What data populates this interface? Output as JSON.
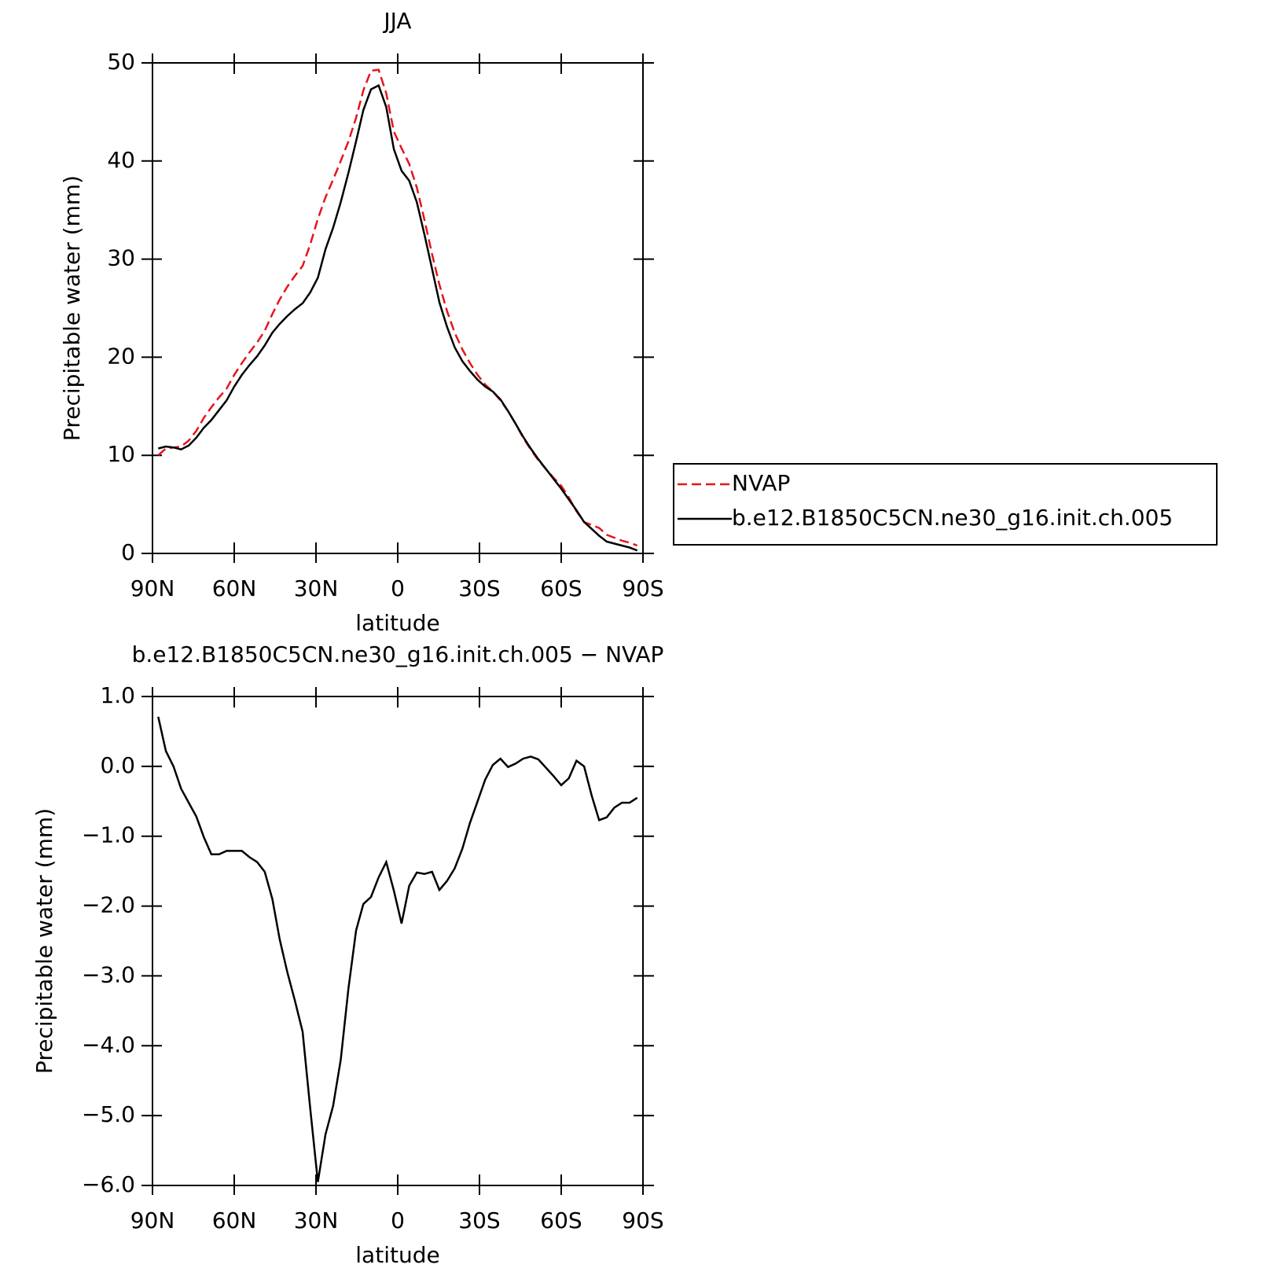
{
  "chart_data": [
    {
      "type": "line",
      "title": "JJA",
      "x_label": "latitude",
      "y_label": "Precipitable water (mm)",
      "x": [
        87.9,
        85.1,
        82.3,
        79.5,
        76.7,
        73.9,
        71.2,
        68.4,
        65.6,
        62.8,
        60.0,
        57.2,
        54.4,
        51.6,
        48.8,
        46.0,
        43.3,
        40.5,
        37.7,
        34.9,
        32.1,
        29.3,
        26.5,
        23.7,
        20.9,
        18.1,
        15.3,
        12.6,
        9.8,
        7.0,
        4.2,
        1.4,
        -1.4,
        -4.2,
        -7.0,
        -9.8,
        -12.6,
        -15.3,
        -18.1,
        -20.9,
        -23.7,
        -26.5,
        -29.3,
        -32.1,
        -34.9,
        -37.7,
        -40.5,
        -43.3,
        -46.0,
        -48.8,
        -51.6,
        -54.4,
        -57.2,
        -60.0,
        -62.8,
        -65.6,
        -68.4,
        -71.2,
        -73.9,
        -76.7,
        -79.5,
        -82.3,
        -85.1,
        -87.9
      ],
      "series": [
        {
          "name": "NVAP",
          "color": "#e8141c",
          "dashed": true,
          "values": [
            10.0,
            10.7,
            10.8,
            10.9,
            11.5,
            12.5,
            13.8,
            14.9,
            15.9,
            16.8,
            18.2,
            19.4,
            20.5,
            21.5,
            22.7,
            24.4,
            25.9,
            27.2,
            28.3,
            29.3,
            31.5,
            34.1,
            36.3,
            38.1,
            40.0,
            42.0,
            44.4,
            47.2,
            49.2,
            49.3,
            46.9,
            43.0,
            41.3,
            39.7,
            37.3,
            34.0,
            30.5,
            27.4,
            24.7,
            22.5,
            20.8,
            19.4,
            18.2,
            17.2,
            16.5,
            15.6,
            14.5,
            13.2,
            11.8,
            10.6,
            9.5,
            8.6,
            7.7,
            6.9,
            5.7,
            4.3,
            3.2,
            2.9,
            2.6,
            1.9,
            1.6,
            1.3,
            1.1,
            0.8
          ]
        },
        {
          "name": "b.e12.B1850C5CN.ne30_g16.init.ch.005",
          "color": "#000000",
          "dashed": false,
          "values": [
            10.7,
            10.9,
            10.8,
            10.6,
            11.0,
            11.8,
            12.8,
            13.6,
            14.6,
            15.6,
            17.0,
            18.2,
            19.2,
            20.1,
            21.2,
            22.5,
            23.4,
            24.2,
            24.9,
            25.5,
            26.6,
            28.1,
            31.0,
            33.2,
            35.8,
            38.8,
            42.0,
            45.2,
            47.3,
            47.7,
            45.5,
            41.2,
            39.0,
            38.0,
            35.8,
            32.5,
            29.0,
            25.6,
            23.1,
            21.0,
            19.6,
            18.6,
            17.7,
            17.0,
            16.5,
            15.7,
            14.5,
            13.2,
            11.9,
            10.7,
            9.6,
            8.6,
            7.6,
            6.6,
            5.5,
            4.4,
            3.2,
            2.5,
            1.8,
            1.2,
            1.0,
            0.8,
            0.6,
            0.3
          ]
        }
      ],
      "xlim": [
        90,
        -90
      ],
      "xticks": [
        {
          "value": 90,
          "label": "90N"
        },
        {
          "value": 60,
          "label": "60N"
        },
        {
          "value": 30,
          "label": "30N"
        },
        0,
        {
          "value": -30,
          "label": "30S"
        },
        {
          "value": -60,
          "label": "60S"
        },
        {
          "value": -90,
          "label": "90S"
        }
      ],
      "ylim": [
        0,
        50
      ],
      "yticks": [
        0,
        10,
        20,
        30,
        40,
        50
      ],
      "legend": "right"
    },
    {
      "type": "line",
      "title": "b.e12.B1850C5CN.ne30_g16.init.ch.005 − NVAP",
      "x_label": "latitude",
      "y_label": "Precipitable water (mm)",
      "x": [
        87.9,
        85.1,
        82.3,
        79.5,
        76.7,
        73.9,
        71.2,
        68.4,
        65.6,
        62.8,
        60.0,
        57.2,
        54.4,
        51.6,
        48.8,
        46.0,
        43.3,
        40.5,
        37.7,
        34.9,
        32.1,
        29.3,
        26.5,
        23.7,
        20.9,
        18.1,
        15.3,
        12.6,
        9.8,
        7.0,
        4.2,
        1.4,
        -1.4,
        -4.2,
        -7.0,
        -9.8,
        -12.6,
        -15.3,
        -18.1,
        -20.9,
        -23.7,
        -26.5,
        -29.3,
        -32.1,
        -34.9,
        -37.7,
        -40.5,
        -43.3,
        -46.0,
        -48.8,
        -51.6,
        -54.4,
        -57.2,
        -60.0,
        -62.8,
        -65.6,
        -68.4,
        -71.2,
        -73.9,
        -76.7,
        -79.5,
        -82.3,
        -85.1,
        -87.9
      ],
      "color": "#000000",
      "values": [
        0.71,
        0.22,
        0.0,
        -0.32,
        -0.52,
        -0.72,
        -1.01,
        -1.26,
        -1.26,
        -1.21,
        -1.21,
        -1.21,
        -1.3,
        -1.37,
        -1.51,
        -1.9,
        -2.48,
        -2.95,
        -3.36,
        -3.8,
        -4.9,
        -5.95,
        -5.27,
        -4.86,
        -4.2,
        -3.18,
        -2.35,
        -1.97,
        -1.87,
        -1.59,
        -1.37,
        -1.78,
        -2.25,
        -1.71,
        -1.52,
        -1.54,
        -1.51,
        -1.77,
        -1.64,
        -1.46,
        -1.18,
        -0.81,
        -0.5,
        -0.19,
        0.02,
        0.11,
        -0.01,
        0.04,
        0.11,
        0.14,
        0.1,
        -0.02,
        -0.14,
        -0.27,
        -0.17,
        0.08,
        0.0,
        -0.42,
        -0.77,
        -0.73,
        -0.59,
        -0.52,
        -0.52,
        -0.45
      ],
      "xlim": [
        90,
        -90
      ],
      "xticks": [
        {
          "value": 90,
          "label": "90N"
        },
        {
          "value": 60,
          "label": "60N"
        },
        {
          "value": 30,
          "label": "30N"
        },
        0,
        {
          "value": -30,
          "label": "30S"
        },
        {
          "value": -60,
          "label": "60S"
        },
        {
          "value": -90,
          "label": "90S"
        }
      ],
      "ylim": [
        -6,
        1
      ],
      "yticks": [
        {
          "value": 1,
          "label": "1.0"
        },
        {
          "value": 0,
          "label": "0.0"
        },
        {
          "value": -1,
          "label": "−1.0"
        },
        {
          "value": -2,
          "label": "−2.0"
        },
        {
          "value": -3,
          "label": "−3.0"
        },
        {
          "value": -4,
          "label": "−4.0"
        },
        {
          "value": -5,
          "label": "−5.0"
        },
        {
          "value": -6,
          "label": "−6.0"
        }
      ]
    }
  ]
}
